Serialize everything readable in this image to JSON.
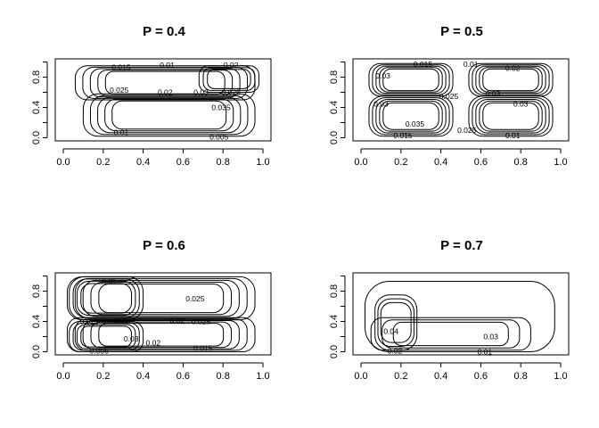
{
  "chart_data": [
    {
      "type": "contour",
      "title": "P =  0.4",
      "xlim": [
        0,
        1
      ],
      "ylim": [
        0,
        1
      ],
      "xticks": [
        "0.0",
        "0.2",
        "0.4",
        "0.6",
        "0.8",
        "1.0"
      ],
      "yticks": [
        "0.0",
        "0.4",
        "0.8"
      ],
      "contour_labels": [
        {
          "text": "0.015",
          "x": 0.29,
          "y": 0.93
        },
        {
          "text": "0.01",
          "x": 0.52,
          "y": 0.96
        },
        {
          "text": "0.02",
          "x": 0.84,
          "y": 0.96
        },
        {
          "text": "0.025",
          "x": 0.28,
          "y": 0.63
        },
        {
          "text": "0.02",
          "x": 0.51,
          "y": 0.6
        },
        {
          "text": "0.03",
          "x": 0.69,
          "y": 0.6
        },
        {
          "text": "0.025",
          "x": 0.84,
          "y": 0.6
        },
        {
          "text": "0.035",
          "x": 0.79,
          "y": 0.4
        },
        {
          "text": "0.01",
          "x": 0.29,
          "y": 0.07
        },
        {
          "text": "0.005",
          "x": 0.78,
          "y": 0.01
        }
      ],
      "regions": [
        {
          "x0": 0.06,
          "x1": 0.96,
          "y0": 0.5,
          "y1": 0.95,
          "levels": 5
        },
        {
          "x0": 0.1,
          "x1": 0.96,
          "y0": 0.02,
          "y1": 0.58,
          "levels": 5
        },
        {
          "x0": 0.68,
          "x1": 0.98,
          "y0": 0.6,
          "y1": 0.95,
          "levels": 3
        }
      ]
    },
    {
      "type": "contour",
      "title": "P =  0.5",
      "xlim": [
        0,
        1
      ],
      "ylim": [
        0,
        1
      ],
      "xticks": [
        "0.0",
        "0.2",
        "0.4",
        "0.6",
        "0.8",
        "1.0"
      ],
      "yticks": [
        "0.0",
        "0.4",
        "0.8"
      ],
      "contour_labels": [
        {
          "text": "0.015",
          "x": 0.31,
          "y": 0.97
        },
        {
          "text": "0.01",
          "x": 0.55,
          "y": 0.97
        },
        {
          "text": "0.02",
          "x": 0.76,
          "y": 0.92
        },
        {
          "text": "0.03",
          "x": 0.11,
          "y": 0.82
        },
        {
          "text": "0.025",
          "x": 0.44,
          "y": 0.55
        },
        {
          "text": "0.03",
          "x": 0.66,
          "y": 0.58
        },
        {
          "text": "0.03",
          "x": 0.1,
          "y": 0.45
        },
        {
          "text": "0.03",
          "x": 0.8,
          "y": 0.45
        },
        {
          "text": "0.035",
          "x": 0.27,
          "y": 0.18
        },
        {
          "text": "0.025",
          "x": 0.53,
          "y": 0.1
        },
        {
          "text": "0.015",
          "x": 0.21,
          "y": 0.03
        },
        {
          "text": "0.01",
          "x": 0.76,
          "y": 0.03
        }
      ],
      "regions": [
        {
          "x0": 0.04,
          "x1": 0.46,
          "y0": 0.55,
          "y1": 0.98,
          "levels": 5
        },
        {
          "x0": 0.54,
          "x1": 0.96,
          "y0": 0.55,
          "y1": 0.98,
          "levels": 5
        },
        {
          "x0": 0.04,
          "x1": 0.46,
          "y0": 0.02,
          "y1": 0.55,
          "levels": 5
        },
        {
          "x0": 0.54,
          "x1": 0.96,
          "y0": 0.02,
          "y1": 0.55,
          "levels": 5
        }
      ]
    },
    {
      "type": "contour",
      "title": "P =  0.6",
      "xlim": [
        0,
        1
      ],
      "ylim": [
        0,
        1
      ],
      "xticks": [
        "0.0",
        "0.2",
        "0.4",
        "0.6",
        "0.8",
        "1.0"
      ],
      "yticks": [
        "0.0",
        "0.4",
        "0.8"
      ],
      "contour_labels": [
        {
          "text": "0.01",
          "x": 0.23,
          "y": 0.93
        },
        {
          "text": "0.025",
          "x": 0.66,
          "y": 0.7
        },
        {
          "text": "0.025",
          "x": 0.13,
          "y": 0.4
        },
        {
          "text": "0.03",
          "x": 0.29,
          "y": 0.42
        },
        {
          "text": "0.02",
          "x": 0.57,
          "y": 0.41
        },
        {
          "text": "0.025",
          "x": 0.69,
          "y": 0.4
        },
        {
          "text": "0.02",
          "x": 0.45,
          "y": 0.12
        },
        {
          "text": "0.03",
          "x": 0.34,
          "y": 0.17
        },
        {
          "text": "0.005",
          "x": 0.18,
          "y": 0.01
        },
        {
          "text": "0.015",
          "x": 0.7,
          "y": 0.05
        }
      ],
      "regions": [
        {
          "x0": 0.02,
          "x1": 0.96,
          "y0": 0.42,
          "y1": 0.99,
          "levels": 5
        },
        {
          "x0": 0.03,
          "x1": 0.4,
          "y0": 0.42,
          "y1": 0.99,
          "levels": 4
        },
        {
          "x0": 0.02,
          "x1": 0.96,
          "y0": 0.0,
          "y1": 0.45,
          "levels": 5
        },
        {
          "x0": 0.03,
          "x1": 0.4,
          "y0": 0.0,
          "y1": 0.4,
          "levels": 4
        }
      ]
    },
    {
      "type": "contour",
      "title": "P =  0.7",
      "xlim": [
        0,
        1
      ],
      "ylim": [
        0,
        1
      ],
      "xticks": [
        "0.0",
        "0.2",
        "0.4",
        "0.6",
        "0.8",
        "1.0"
      ],
      "yticks": [
        "0.0",
        "0.4",
        "0.8"
      ],
      "contour_labels": [
        {
          "text": "0.04",
          "x": 0.15,
          "y": 0.27
        },
        {
          "text": "0.03",
          "x": 0.65,
          "y": 0.2
        },
        {
          "text": "0.02",
          "x": 0.17,
          "y": 0.01
        },
        {
          "text": "0.01",
          "x": 0.62,
          "y": 0.0
        }
      ],
      "regions": [
        {
          "x0": 0.02,
          "x1": 0.97,
          "y0": 0.0,
          "y1": 0.93,
          "levels": 1
        },
        {
          "x0": 0.05,
          "x1": 0.85,
          "y0": 0.02,
          "y1": 0.45,
          "levels": 3
        },
        {
          "x0": 0.07,
          "x1": 0.28,
          "y0": 0.02,
          "y1": 0.75,
          "levels": 3
        }
      ]
    }
  ]
}
